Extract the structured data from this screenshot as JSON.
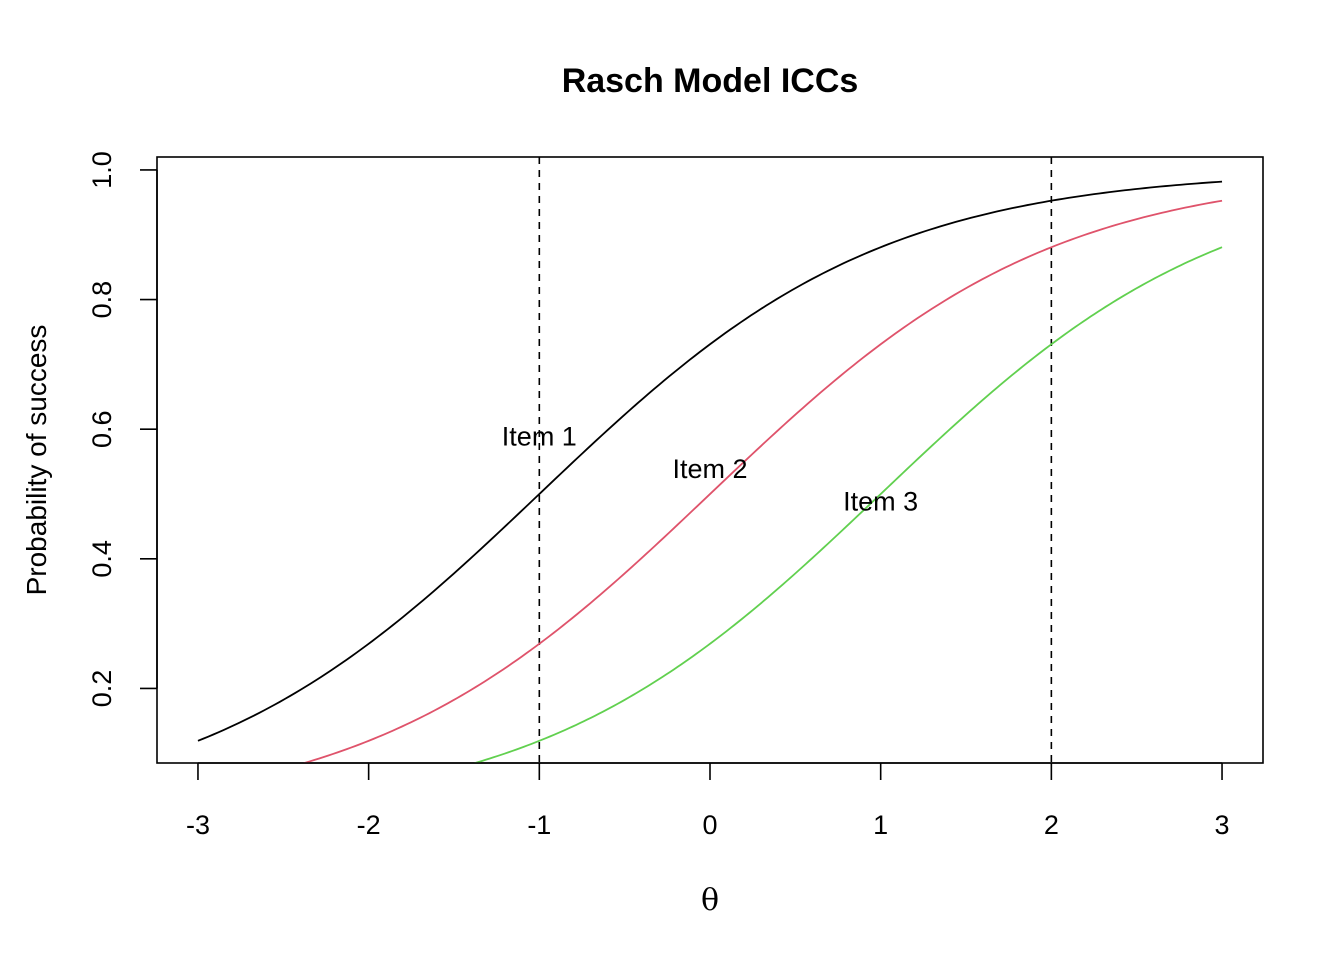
{
  "chart_data": {
    "type": "line",
    "title": "Rasch Model ICCs",
    "xlabel": "θ",
    "ylabel": "Probability of success",
    "xlim": [
      -3.24,
      3.24
    ],
    "ylim": [
      0.085,
      1.02
    ],
    "xticks": [
      "-3",
      "-2",
      "-1",
      "0",
      "1",
      "2",
      "3"
    ],
    "yticks": [
      "0.2",
      "0.4",
      "0.6",
      "0.8",
      "1.0"
    ],
    "grid": false,
    "legend": "none",
    "series": [
      {
        "name": "Item 1",
        "color": "#000000",
        "x": [
          -3,
          -2.5,
          -2,
          -1.5,
          -1,
          -0.5,
          0,
          0.5,
          1,
          1.5,
          2,
          2.5,
          3
        ],
        "y": [
          0.119,
          0.182,
          0.269,
          0.378,
          0.5,
          0.622,
          0.731,
          0.818,
          0.881,
          0.924,
          0.953,
          0.971,
          0.982
        ]
      },
      {
        "name": "Item 2",
        "color": "#DF536B",
        "x": [
          -2.4,
          -2,
          -1.5,
          -1,
          -0.5,
          0,
          0.5,
          1,
          1.5,
          2,
          2.5,
          3
        ],
        "y": [
          0.083,
          0.119,
          0.182,
          0.269,
          0.378,
          0.5,
          0.622,
          0.731,
          0.818,
          0.881,
          0.924,
          0.953
        ]
      },
      {
        "name": "Item 3",
        "color": "#61D04F",
        "x": [
          -1.4,
          -1,
          -0.5,
          0,
          0.5,
          1,
          1.5,
          2,
          2.5,
          3
        ],
        "y": [
          0.083,
          0.119,
          0.182,
          0.269,
          0.378,
          0.5,
          0.622,
          0.731,
          0.818,
          0.881
        ]
      }
    ],
    "labels": [
      {
        "text": "Item 1",
        "x": -1,
        "y": 0.59
      },
      {
        "text": "Item 2",
        "x": 0,
        "y": 0.54
      },
      {
        "text": "Item 3",
        "x": 1,
        "y": 0.49
      }
    ],
    "vlines": [
      -1,
      2
    ]
  }
}
